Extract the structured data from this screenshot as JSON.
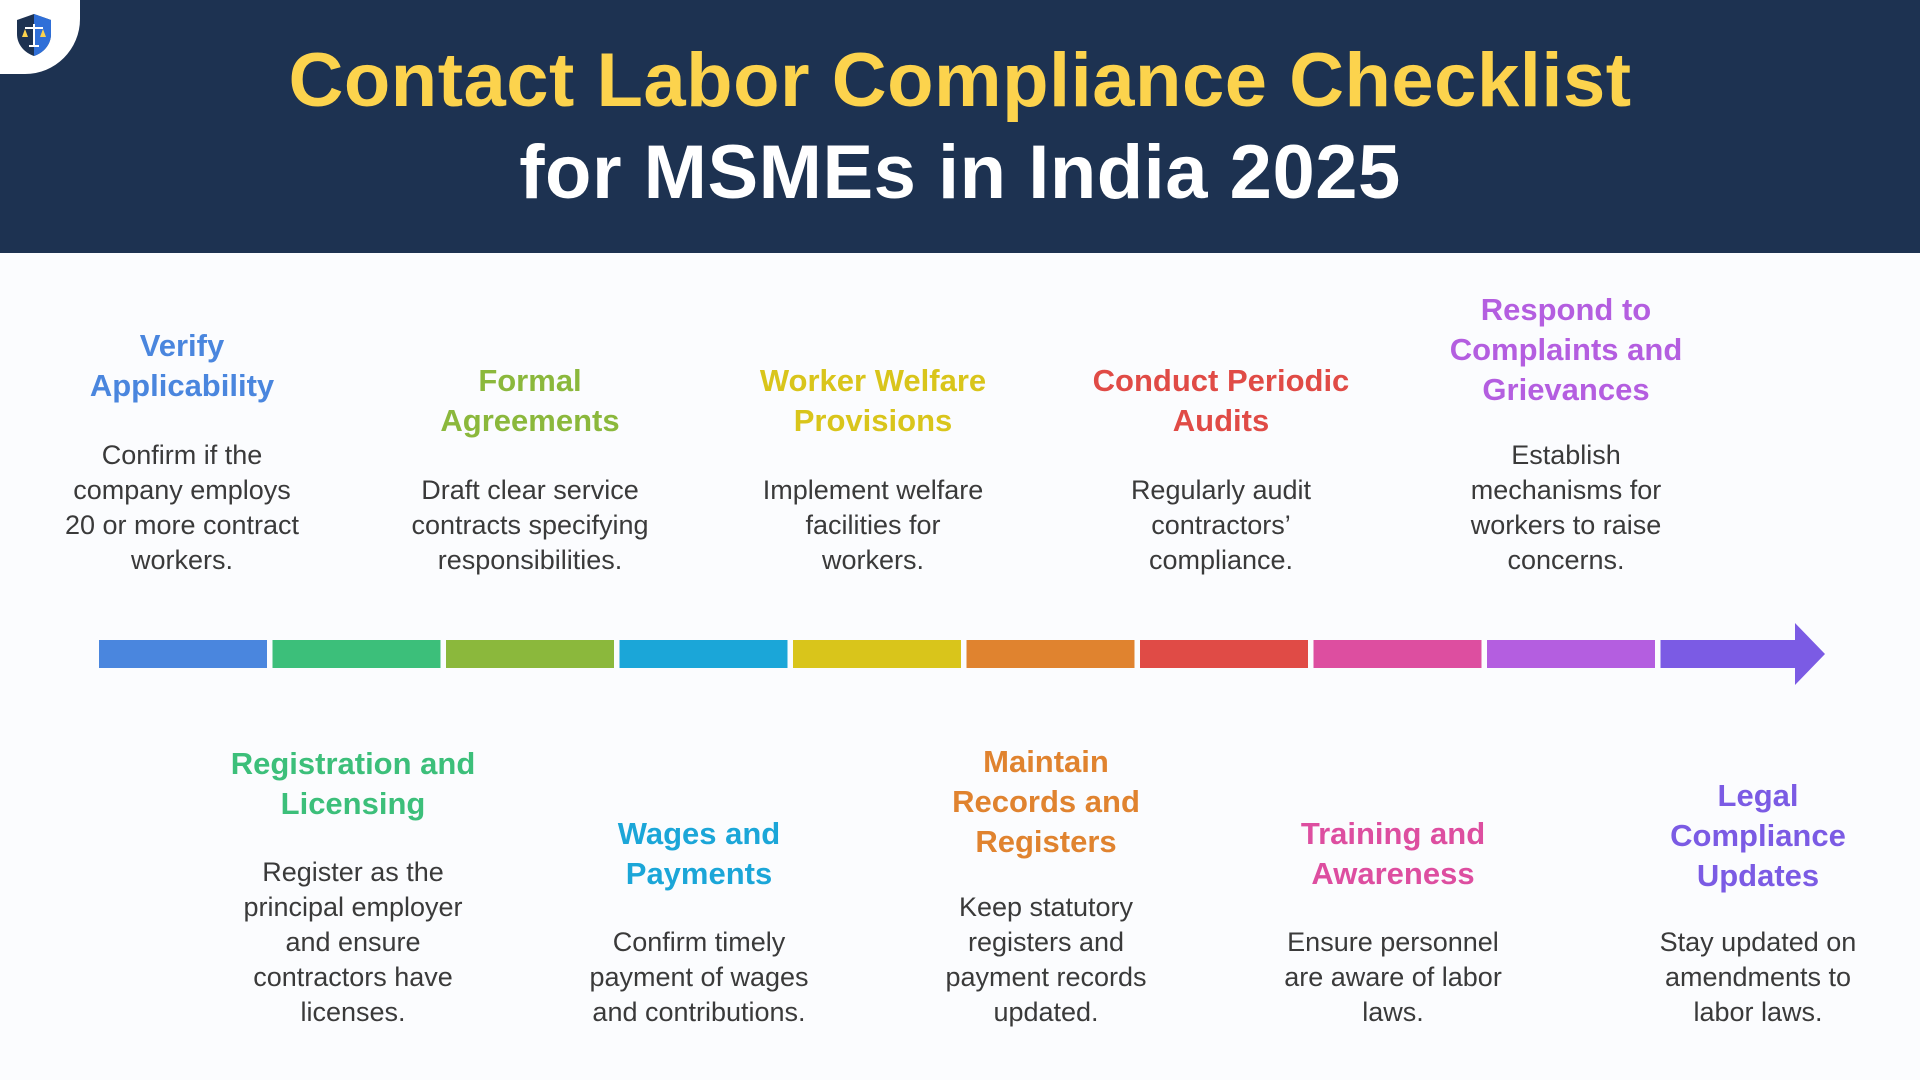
{
  "header": {
    "title_line_1": "Contact Labor Compliance Checklist",
    "title_line_2": "for MSMEs in India 2025",
    "logo_icon": "shield-scales-icon",
    "background_color": "#1d3251",
    "title_color": "#fcd34d"
  },
  "steps": [
    {
      "title_lines": [
        "Verify",
        "Applicability"
      ],
      "desc_lines": [
        "Confirm if the",
        "company employs",
        "20 or more contract",
        "workers."
      ],
      "color": "#4a86de"
    },
    {
      "title_lines": [
        "Registration and",
        "Licensing"
      ],
      "desc_lines": [
        "Register as the",
        "principal employer",
        "and ensure",
        "contractors have",
        "licenses."
      ],
      "color": "#3cbf7a"
    },
    {
      "title_lines": [
        "Formal",
        "Agreements"
      ],
      "desc_lines": [
        "Draft clear service",
        "contracts specifying",
        "responsibilities."
      ],
      "color": "#8bb83c"
    },
    {
      "title_lines": [
        "Wages and",
        "Payments"
      ],
      "desc_lines": [
        "Confirm timely",
        "payment of wages",
        "and contributions."
      ],
      "color": "#1ba6d8"
    },
    {
      "title_lines": [
        "Worker Welfare",
        "Provisions"
      ],
      "desc_lines": [
        "Implement welfare",
        "facilities for",
        "workers."
      ],
      "color": "#d9c51b"
    },
    {
      "title_lines": [
        "Maintain",
        "Records and",
        "Registers"
      ],
      "desc_lines": [
        "Keep statutory",
        "registers and",
        "payment records",
        "updated."
      ],
      "color": "#e0832f"
    },
    {
      "title_lines": [
        "Conduct Periodic",
        "Audits"
      ],
      "desc_lines": [
        "Regularly audit",
        "contractors’",
        "compliance."
      ],
      "color": "#e04b46"
    },
    {
      "title_lines": [
        "Training and",
        "Awareness"
      ],
      "desc_lines": [
        "Ensure personnel",
        "are aware of labor",
        "laws."
      ],
      "color": "#dd4ea0"
    },
    {
      "title_lines": [
        "Respond to",
        "Complaints and",
        "Grievances"
      ],
      "desc_lines": [
        "Establish",
        "mechanisms for",
        "workers to raise",
        "concerns."
      ],
      "color": "#b45ee0"
    },
    {
      "title_lines": [
        "Legal",
        "Compliance",
        "Updates"
      ],
      "desc_lines": [
        "Stay updated on",
        "amendments to",
        "labor laws."
      ],
      "color": "#7b5be4"
    }
  ],
  "timeline": {
    "segment_colors": [
      "#4a86de",
      "#3cbf7a",
      "#8bb83c",
      "#1ba6d8",
      "#d9c51b",
      "#e0832f",
      "#e04b46",
      "#dd4ea0",
      "#b45ee0",
      "#7b5be4"
    ],
    "end_marker": "arrow-right-icon"
  }
}
